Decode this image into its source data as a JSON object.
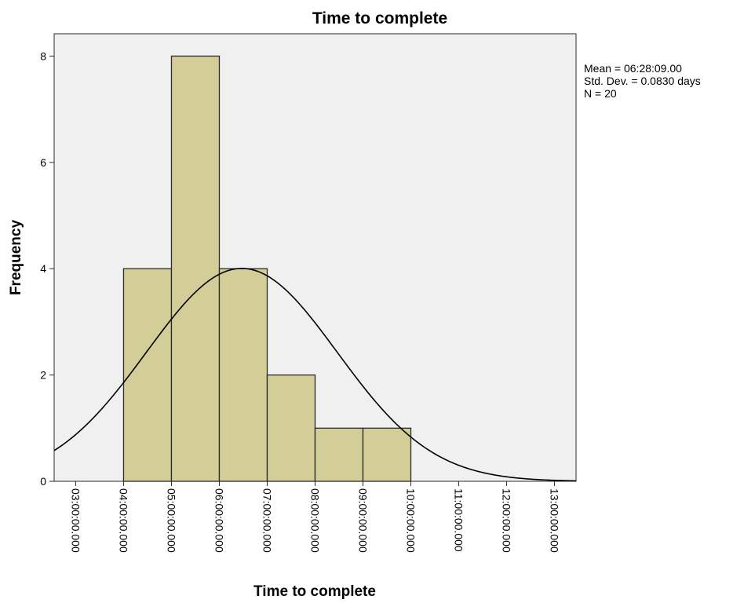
{
  "chart_data": {
    "type": "bar",
    "title": "Time to complete",
    "xlabel": "Time to complete",
    "ylabel": "Frequency",
    "x_tick_labels": [
      "03:00:00.000",
      "04:00:00.000",
      "05:00:00.000",
      "06:00:00.000",
      "07:00:00.000",
      "08:00:00.000",
      "09:00:00.000",
      "10:00:00.000",
      "11:00:00.000",
      "12:00:00.000",
      "13:00:00.000"
    ],
    "x_tick_hours": [
      3,
      4,
      5,
      6,
      7,
      8,
      9,
      10,
      11,
      12,
      13
    ],
    "xlim_hours": [
      2.55,
      13.45
    ],
    "y_ticks": [
      0,
      2,
      4,
      6,
      8
    ],
    "ylim": [
      0,
      8.42
    ],
    "bins": [
      {
        "start_hours": 4.0,
        "end_hours": 5.0,
        "count": 4
      },
      {
        "start_hours": 5.0,
        "end_hours": 6.0,
        "count": 8
      },
      {
        "start_hours": 6.0,
        "end_hours": 7.0,
        "count": 4
      },
      {
        "start_hours": 7.0,
        "end_hours": 8.0,
        "count": 2
      },
      {
        "start_hours": 8.0,
        "end_hours": 9.0,
        "count": 1
      },
      {
        "start_hours": 9.0,
        "end_hours": 10.0,
        "count": 1
      }
    ],
    "normal_curve": {
      "mean_hours": 6.4692,
      "sd_hours": 1.992,
      "n": 20,
      "bin_width_hours": 1.0
    },
    "stats": {
      "mean": "Mean = 06:28:09.00",
      "std_dev": "Std. Dev. = 0.0830 days",
      "n": "N = 20"
    },
    "grid": false,
    "legend": "top-right",
    "colors": {
      "bar_fill": "#d3ce97",
      "bar_stroke": "#2b2b2b",
      "plot_background": "#f0f0f0",
      "curve": "#000000"
    }
  }
}
